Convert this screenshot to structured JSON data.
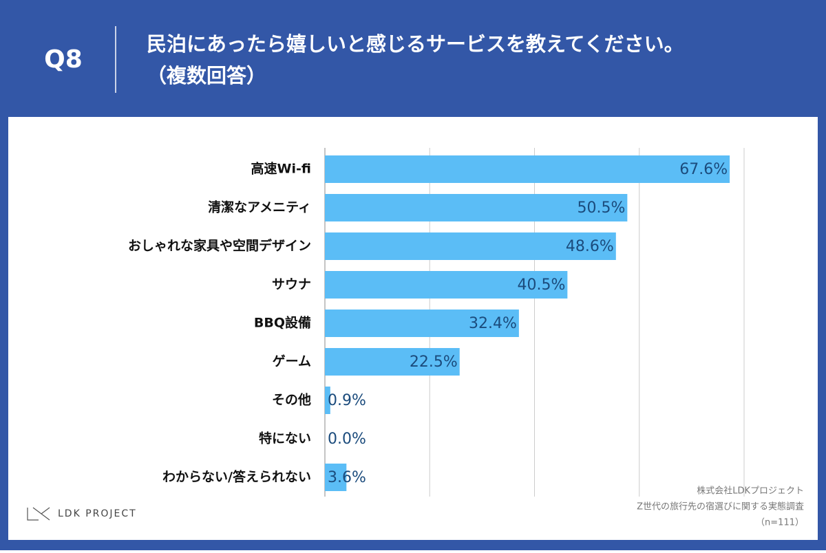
{
  "header": {
    "question": "Q8",
    "title": "民泊にあったら嬉しいと感じるサービスを教えてください。",
    "subtitle": "（複数回答）"
  },
  "chart_data": {
    "type": "hbar",
    "categories": [
      "高速Wi-fi",
      "清潔なアメニティ",
      "おしゃれな家具や空間デザイン",
      "サウナ",
      "BBQ設備",
      "ゲーム",
      "その他",
      "特にない",
      "わからない/答えられない"
    ],
    "values": [
      67.6,
      50.5,
      48.6,
      40.5,
      32.4,
      22.5,
      0.9,
      0.0,
      3.6
    ],
    "value_labels": [
      "67.6%",
      "50.5%",
      "48.6%",
      "40.5%",
      "32.4%",
      "22.5%",
      "0.9%",
      "0.0%",
      "3.6%"
    ],
    "color": "#5bbdf6",
    "xlim": [
      0,
      70
    ],
    "xticks": [
      0,
      17.5,
      35,
      52.5,
      70
    ],
    "grid": true
  },
  "footer": {
    "logo": "LDK PROJECT",
    "source": [
      "株式会社LDKプロジェクト",
      "Z世代の旅行先の宿選びに関する実態調査",
      "（n=111）"
    ]
  }
}
